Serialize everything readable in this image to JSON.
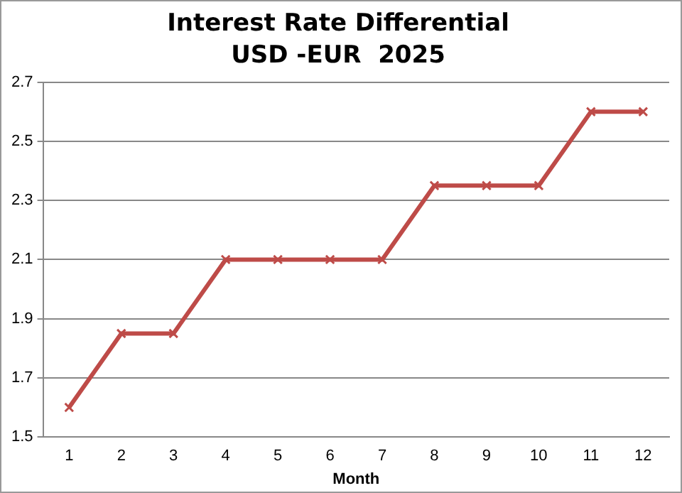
{
  "chart_data": {
    "type": "line",
    "title": "Interest Rate Differential",
    "subtitle": "USD -EUR  2025",
    "xlabel": "Month",
    "categories": [
      "1",
      "2",
      "3",
      "4",
      "5",
      "6",
      "7",
      "8",
      "9",
      "10",
      "11",
      "12"
    ],
    "series": [
      {
        "color": "#be4b48",
        "values": [
          1.6,
          1.85,
          1.85,
          2.1,
          2.1,
          2.1,
          2.1,
          2.35,
          2.35,
          2.35,
          2.6,
          2.6
        ]
      }
    ],
    "ylim": [
      1.5,
      2.7
    ],
    "yticks": [
      1.5,
      1.7,
      1.9,
      2.1,
      2.3,
      2.5,
      2.7
    ],
    "grid": "y",
    "marker": "cross",
    "line_style": "solid"
  }
}
